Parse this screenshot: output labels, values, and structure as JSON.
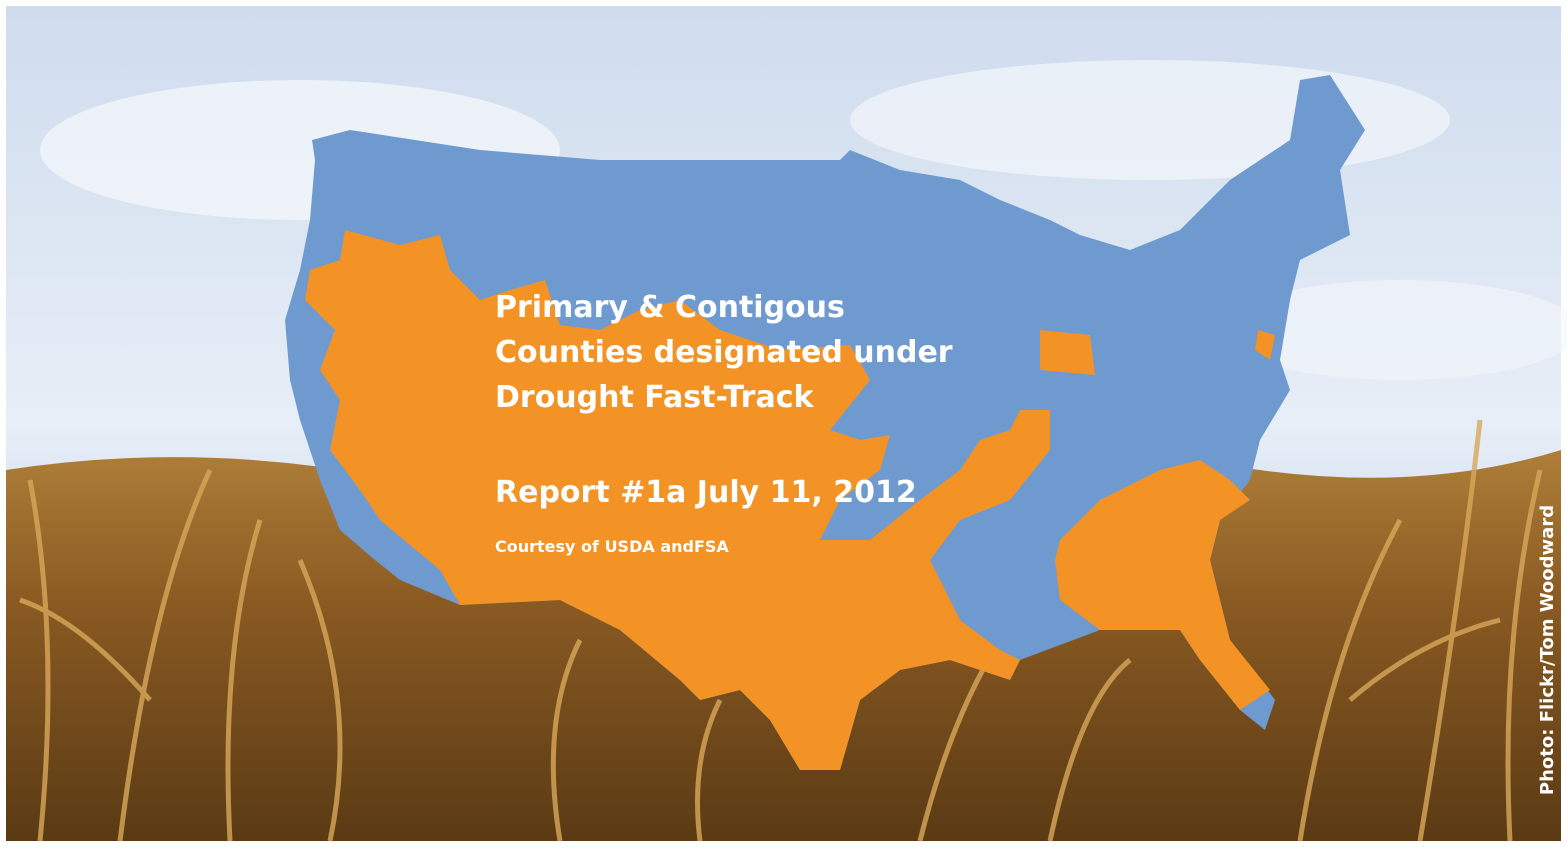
{
  "title": {
    "lines": [
      "Primary & Contigous",
      "Counties designated under",
      "Drought Fast-Track"
    ]
  },
  "report": "Report #1a July 11, 2012",
  "courtesy": "Courtesy of USDA andFSA",
  "photo_credit": "Photo: Flickr/Tom Woodward"
}
